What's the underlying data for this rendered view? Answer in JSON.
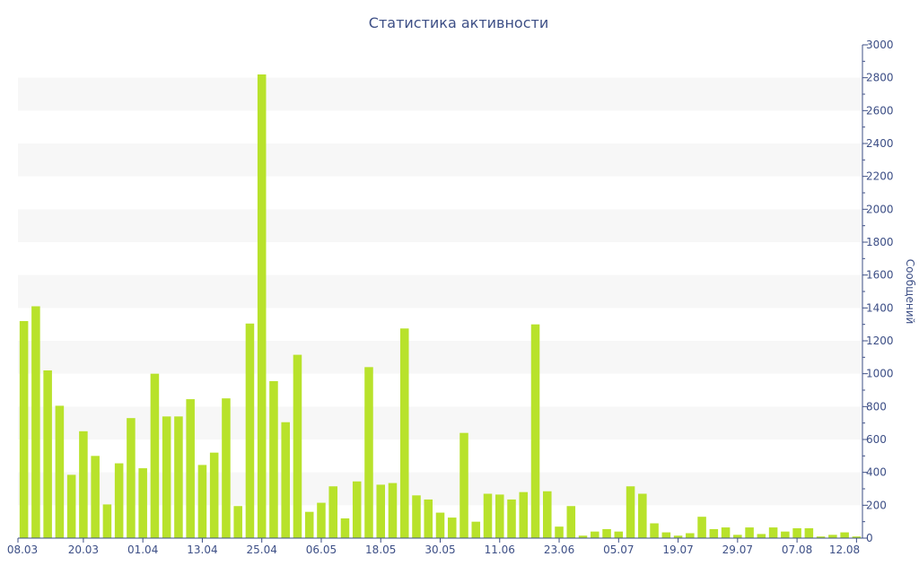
{
  "chart_data": {
    "type": "bar",
    "title": "Статистика активности",
    "xlabel": "",
    "ylabel": "Сообщений",
    "ylim": [
      0,
      3000
    ],
    "y_ticks": [
      0,
      200,
      400,
      600,
      800,
      1000,
      1200,
      1400,
      1600,
      1800,
      2000,
      2200,
      2400,
      2600,
      2800,
      3000
    ],
    "y_axis_side": "right",
    "grid": "alternating horizontal bands",
    "x_ticks": [
      {
        "label": "08.03",
        "index": 0
      },
      {
        "label": "20.03",
        "index": 5.5
      },
      {
        "label": "01.04",
        "index": 10.5
      },
      {
        "label": "13.04",
        "index": 15.5
      },
      {
        "label": "25.04",
        "index": 20.5
      },
      {
        "label": "06.05",
        "index": 25.5
      },
      {
        "label": "18.05",
        "index": 30.5
      },
      {
        "label": "30.05",
        "index": 35.5
      },
      {
        "label": "11.06",
        "index": 40.5
      },
      {
        "label": "23.06",
        "index": 45.5
      },
      {
        "label": "05.07",
        "index": 50.5
      },
      {
        "label": "19.07",
        "index": 55.5
      },
      {
        "label": "29.07",
        "index": 60.5
      },
      {
        "label": "07.08",
        "index": 65.5
      },
      {
        "label": "12.08",
        "index": 70.5
      }
    ],
    "series": [
      {
        "color": "#b8e22b",
        "values": [
          1320,
          1410,
          1020,
          805,
          385,
          650,
          500,
          205,
          455,
          730,
          425,
          1000,
          740,
          740,
          845,
          445,
          520,
          850,
          195,
          1305,
          2820,
          955,
          705,
          1115,
          160,
          215,
          315,
          120,
          345,
          1040,
          325,
          335,
          1275,
          260,
          235,
          155,
          125,
          640,
          100,
          270,
          265,
          235,
          280,
          1300,
          285,
          70,
          195,
          15,
          40,
          55,
          40,
          315,
          270,
          90,
          35,
          15,
          30,
          130,
          55,
          65,
          20,
          65,
          25,
          65,
          40,
          60,
          60,
          10,
          20,
          35,
          10
        ]
      }
    ]
  },
  "colors": {
    "bar": "#b8e22b",
    "axis": "#3d4f86",
    "band": "#f7f7f7"
  }
}
